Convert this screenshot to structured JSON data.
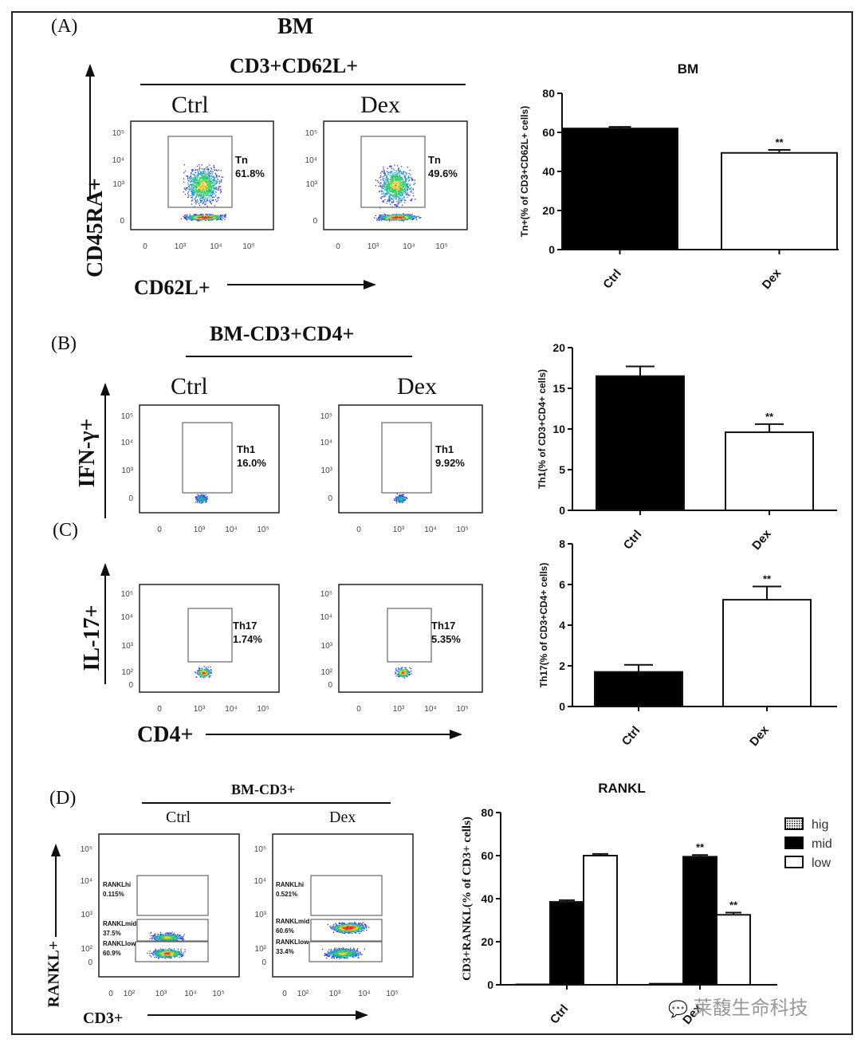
{
  "panels": {
    "A": {
      "label": "(A)",
      "title": "BM",
      "subtitle": "CD3+CD62L+",
      "groups": [
        "Ctrl",
        "Dex"
      ],
      "y_axis": "CD45RA+",
      "x_axis": "CD62L+",
      "gate_name": "Tn",
      "gate_values": [
        "61.8%",
        "49.6%"
      ],
      "x_ticks": [
        "0",
        "10³",
        "10⁴",
        "10⁵"
      ],
      "y_ticks": [
        "10⁵",
        "10⁴",
        "10³",
        "0"
      ]
    },
    "B": {
      "label": "(B)",
      "title": "BM-CD3+CD4+",
      "groups": [
        "Ctrl",
        "Dex"
      ],
      "y_axis": "IFN-γ+",
      "gate_name": "Th1",
      "gate_values": [
        "16.0%",
        "9.92%"
      ],
      "x_ticks": [
        "0",
        "10³",
        "10⁴",
        "10⁵"
      ],
      "y_ticks": [
        "10⁵",
        "10⁴",
        "10³",
        "0"
      ]
    },
    "C": {
      "label": "(C)",
      "y_axis": "IL-17+",
      "x_axis": "CD4+",
      "gate_name": "Th17",
      "gate_values": [
        "1.74%",
        "5.35%"
      ],
      "x_ticks": [
        "0",
        "10³",
        "10⁴",
        "10⁵"
      ],
      "y_ticks": [
        "10⁵",
        "10⁴",
        "10³",
        "10²",
        "0"
      ]
    },
    "D": {
      "label": "(D)",
      "title": "BM-CD3+",
      "groups": [
        "Ctrl",
        "Dex"
      ],
      "y_axis": "RANKL+",
      "x_axis": "CD3+",
      "gates": [
        {
          "hi": "RANKLhi",
          "hi_val": "0.115%",
          "mid": "RANKLmid",
          "mid_val": "37.5%",
          "low": "RANKLlow",
          "low_val": "60.9%"
        },
        {
          "hi": "RANKLhi",
          "hi_val": "0.521%",
          "mid": "RANKLmid",
          "mid_val": "60.6%",
          "low": "RANKLlow",
          "low_val": "33.4%"
        }
      ],
      "x_ticks": [
        "0",
        "10²",
        "10³",
        "10⁴",
        "10⁵"
      ],
      "y_ticks": [
        "10⁵",
        "10⁴",
        "10³",
        "10²",
        "0"
      ]
    }
  },
  "watermark": "莱馥生命科技",
  "chart_data": [
    {
      "type": "bar",
      "title": "BM",
      "ylabel": "Tn+(% of CD3+CD62L+ cells)",
      "categories": [
        "Ctrl",
        "Dex"
      ],
      "values": [
        62,
        49.5
      ],
      "errors": [
        0.8,
        1.5
      ],
      "annotations": [
        "",
        "**"
      ],
      "ylim": [
        0,
        80
      ],
      "yticks": [
        0,
        20,
        40,
        60,
        80
      ],
      "colors": [
        "#000000",
        "#ffffff"
      ]
    },
    {
      "type": "bar",
      "title": "",
      "ylabel": "Th1(% of CD3+CD4+ cells)",
      "categories": [
        "Ctrl",
        "Dex"
      ],
      "values": [
        16.5,
        9.6
      ],
      "errors": [
        1.2,
        1.0
      ],
      "annotations": [
        "",
        "**"
      ],
      "ylim": [
        0,
        20
      ],
      "yticks": [
        0,
        5,
        10,
        15,
        20
      ],
      "colors": [
        "#000000",
        "#ffffff"
      ]
    },
    {
      "type": "bar",
      "title": "",
      "ylabel": "Th17(% of CD3+CD4+ cells)",
      "categories": [
        "Ctrl",
        "Dex"
      ],
      "values": [
        1.7,
        5.25
      ],
      "errors": [
        0.35,
        0.65
      ],
      "annotations": [
        "",
        "**"
      ],
      "ylim": [
        0,
        8
      ],
      "yticks": [
        0,
        2,
        4,
        6,
        8
      ],
      "colors": [
        "#000000",
        "#ffffff"
      ]
    },
    {
      "type": "bar",
      "title": "RANKL",
      "ylabel": "CD3+RANKL(% of CD3+ cells)",
      "categories": [
        "Ctrl",
        "Dex"
      ],
      "ylim": [
        0,
        80
      ],
      "yticks": [
        0,
        20,
        40,
        60,
        80
      ],
      "legend": "top-right",
      "series": [
        {
          "name": "hig",
          "values": [
            0.2,
            0.5
          ],
          "errors": [
            0,
            0
          ],
          "annotations": [
            "",
            ""
          ],
          "color": "hatched"
        },
        {
          "name": "mid",
          "values": [
            38.5,
            59.5
          ],
          "errors": [
            0.8,
            0.8
          ],
          "annotations": [
            "",
            "**"
          ],
          "color": "#000000"
        },
        {
          "name": "low",
          "values": [
            60,
            32.5
          ],
          "errors": [
            0.8,
            1.0
          ],
          "annotations": [
            "",
            "**"
          ],
          "color": "#ffffff"
        }
      ]
    }
  ]
}
